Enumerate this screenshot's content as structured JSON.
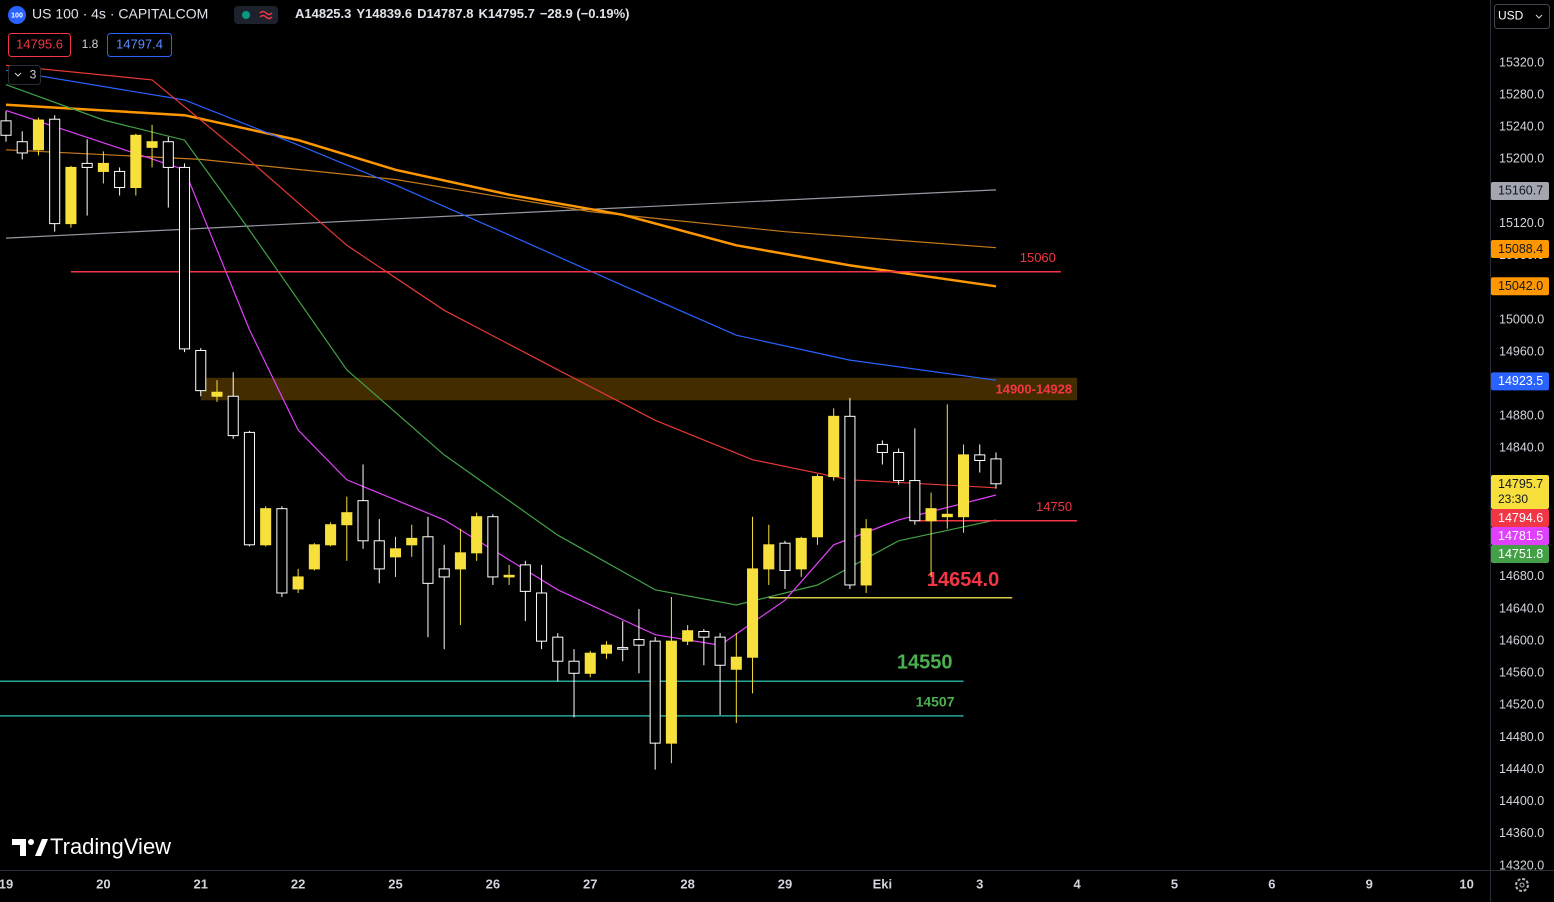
{
  "header": {
    "icon": "100",
    "symbol": "US 100 · 4s · CAPITALCOM",
    "readout": [
      "A14825.3",
      "Y14839.6",
      "D14787.8",
      "K14795.7",
      "−28.9 (−0.19%)"
    ],
    "sell": "14795.6",
    "spread": "1.8",
    "buy": "14797.4",
    "indicators_count": "3",
    "currency": "USD",
    "logo": "TradingView"
  },
  "chart_data": {
    "type": "candlestick",
    "open": [
      15248,
      15222,
      15212,
      15250,
      15120,
      15195,
      15185,
      15185,
      15165,
      15215,
      15222,
      15190,
      14962,
      14905,
      14905,
      14860,
      14720,
      14765,
      14665,
      14690,
      14720,
      14745,
      14775,
      14725,
      14705,
      14720,
      14730,
      14690,
      14690,
      14710,
      14755,
      14680,
      14695,
      14660,
      14605,
      14575,
      14560,
      14585,
      14592,
      14602,
      14600,
      14473,
      14600,
      14612,
      14605,
      14565,
      14580,
      14690,
      14722,
      14690,
      14730,
      14805,
      14880,
      14670,
      14845,
      14835,
      14800,
      14750,
      14755,
      14755,
      14832,
      14827
    ],
    "high": [
      15260,
      15235,
      15252,
      15255,
      15192,
      15225,
      15210,
      15190,
      15232,
      15243,
      15228,
      15195,
      14965,
      14925,
      14935,
      14862,
      14768,
      14768,
      14690,
      14722,
      14748,
      14780,
      14820,
      14752,
      14730,
      14745,
      14755,
      14720,
      14740,
      14760,
      14758,
      14695,
      14700,
      14695,
      14610,
      14590,
      14588,
      14600,
      14625,
      14640,
      14605,
      14655,
      14620,
      14615,
      14610,
      14610,
      14755,
      14745,
      14725,
      14730,
      14808,
      14890,
      14903,
      14752,
      14850,
      14840,
      14865,
      14785,
      14895,
      14845,
      14845,
      14835
    ],
    "low": [
      15222,
      15200,
      15205,
      15110,
      15115,
      15130,
      15170,
      15155,
      15155,
      15190,
      15140,
      14960,
      14905,
      14898,
      14852,
      14718,
      14718,
      14655,
      14660,
      14688,
      14718,
      14700,
      14715,
      14672,
      14680,
      14705,
      14605,
      14590,
      14620,
      14700,
      14670,
      14670,
      14625,
      14590,
      14550,
      14505,
      14555,
      14578,
      14575,
      14560,
      14440,
      14448,
      14595,
      14570,
      14508,
      14498,
      14535,
      14670,
      14665,
      14680,
      14720,
      14800,
      14665,
      14660,
      14820,
      14795,
      14745,
      14680,
      14740,
      14735,
      14810,
      14790
    ],
    "close": [
      15230,
      15208,
      15249,
      15120,
      15190,
      15190,
      15195,
      15165,
      15230,
      15222,
      15190,
      14964,
      14912,
      14910,
      14856,
      14720,
      14765,
      14660,
      14680,
      14720,
      14745,
      14760,
      14725,
      14690,
      14715,
      14728,
      14672,
      14680,
      14710,
      14755,
      14680,
      14682,
      14662,
      14600,
      14575,
      14560,
      14585,
      14595,
      14590,
      14595,
      14473,
      14600,
      14613,
      14605,
      14570,
      14580,
      14690,
      14720,
      14688,
      14728,
      14805,
      14880,
      14670,
      14740,
      14835,
      14800,
      14750,
      14765,
      14758,
      14832,
      14825,
      14796
    ],
    "up_color": "#f7e03c",
    "down_color": "#ffffff",
    "lines": [
      {
        "color": "#9598a1",
        "x": [
          0,
          30,
          61
        ],
        "values": [
          15102,
          15132,
          15162
        ]
      },
      {
        "color": "#c77a1b",
        "x": [
          0,
          12,
          24,
          36,
          48,
          61
        ],
        "values": [
          15212,
          15200,
          15175,
          15135,
          15110,
          15090
        ]
      },
      {
        "color": "#ff9800",
        "x": [
          0,
          11,
          18,
          24,
          31,
          38,
          45,
          52,
          61
        ],
        "values": [
          15268,
          15255,
          15224,
          15187,
          15156,
          15131,
          15093,
          15068,
          15042
        ]
      },
      {
        "color": "#2962ff",
        "x": [
          0,
          11,
          18,
          24,
          31,
          38,
          45,
          52,
          61
        ],
        "values": [
          15311,
          15274,
          15218,
          15168,
          15106,
          15043,
          14981,
          14950,
          14925
        ]
      },
      {
        "color": "#e53935",
        "x": [
          0,
          9,
          15,
          21,
          27,
          34,
          40,
          46,
          52,
          61
        ],
        "values": [
          15317,
          15299,
          15199,
          15093,
          15012,
          14938,
          14875,
          14826,
          14801,
          14791
        ]
      },
      {
        "color": "#43a047",
        "x": [
          0,
          6,
          11,
          15,
          21,
          27,
          34,
          40,
          45,
          50,
          55,
          61
        ],
        "values": [
          15293,
          15249,
          15224,
          15112,
          14938,
          14832,
          14732,
          14664,
          14645,
          14670,
          14725,
          14751
        ]
      },
      {
        "color": "#e040fb",
        "x": [
          0,
          11,
          15,
          18,
          21,
          27,
          34,
          40,
          44,
          48,
          51,
          55,
          61
        ],
        "values": [
          15261,
          15187,
          14988,
          14863,
          14801,
          14751,
          14664,
          14608,
          14595,
          14651,
          14720,
          14751,
          14782
        ]
      }
    ],
    "zone": {
      "low": 14900,
      "high": 14928,
      "label": "14900-14928",
      "x": [
        12,
        66
      ],
      "color": "#4a3200",
      "text_color": "#f23645"
    },
    "levels": [
      {
        "value": 15060,
        "label": "15060",
        "x": [
          4,
          65
        ],
        "color": "#f23645",
        "text_color": "#f23645"
      },
      {
        "value": 14750,
        "label": "14750",
        "x": [
          56,
          66
        ],
        "color": "#f23645",
        "text_color": "#f23645"
      },
      {
        "value": 14654,
        "label": "14654.0",
        "x": [
          47,
          62
        ],
        "color": "#d8c94a",
        "text_color": "#f23645"
      },
      {
        "value": 14550,
        "label": "14550",
        "x": [
          -1,
          59
        ],
        "color": "#26a69a",
        "text_color": "#4caf50"
      },
      {
        "value": 14507,
        "label": "14507",
        "x": [
          -1,
          59
        ],
        "color": "#26a69a",
        "text_color": "#4caf50"
      }
    ],
    "price_tags": [
      {
        "value": 15160.7,
        "label": "15160.7",
        "color": "#a3a6af",
        "text_color": "#131722"
      },
      {
        "value": 15088.4,
        "label": "15088.4",
        "color": "#ff9800",
        "text_color": "#131722"
      },
      {
        "value": 15042,
        "label": "15042.0",
        "color": "#ff9800",
        "text_color": "#131722"
      },
      {
        "value": 14923.5,
        "label": "14923.5",
        "color": "#2962ff",
        "text_color": "#ffffff"
      },
      {
        "value": 14795.7,
        "label": "14795.7",
        "sub": "23:30",
        "color": "#f7e03c",
        "text_color": "#131722"
      },
      {
        "value": 14794.6,
        "label": "14794.6",
        "color": "#f23645",
        "text_color": "#ffffff"
      },
      {
        "value": 14781.5,
        "label": "14781.5",
        "color": "#e040fb",
        "text_color": "#ffffff"
      },
      {
        "value": 14751.8,
        "label": "14751.8",
        "color": "#43a047",
        "text_color": "#ffffff"
      }
    ],
    "xlim": [
      -0.37,
      91.44
    ],
    "xticks": [
      {
        "value": 0,
        "label": "19"
      },
      {
        "value": 6,
        "label": "20"
      },
      {
        "value": 12,
        "label": "21"
      },
      {
        "value": 18,
        "label": "22"
      },
      {
        "value": 24,
        "label": "25"
      },
      {
        "value": 30,
        "label": "26"
      },
      {
        "value": 36,
        "label": "27"
      },
      {
        "value": 42,
        "label": "28"
      },
      {
        "value": 48,
        "label": "29"
      },
      {
        "value": 54,
        "label": "Eki"
      },
      {
        "value": 60,
        "label": "3"
      },
      {
        "value": 66,
        "label": "4"
      },
      {
        "value": 72,
        "label": "5"
      },
      {
        "value": 78,
        "label": "6"
      },
      {
        "value": 84,
        "label": "9"
      },
      {
        "value": 90,
        "label": "10"
      }
    ],
    "ylim": [
      14315,
      15398.5
    ],
    "yticks": [
      {
        "value": 14320,
        "label": "14320.0"
      },
      {
        "value": 14360,
        "label": "14360.0"
      },
      {
        "value": 14400,
        "label": "14400.0"
      },
      {
        "value": 14440,
        "label": "14440.0"
      },
      {
        "value": 14480,
        "label": "14480.0"
      },
      {
        "value": 14520,
        "label": "14520.0"
      },
      {
        "value": 14560,
        "label": "14560.0"
      },
      {
        "value": 14600,
        "label": "14600.0"
      },
      {
        "value": 14640,
        "label": "14640.0"
      },
      {
        "value": 14680,
        "label": "14680.0"
      },
      {
        "value": 14720,
        "label": "14720.0"
      },
      {
        "value": 14760,
        "label": "14760.0"
      },
      {
        "value": 14800,
        "label": "14800.0"
      },
      {
        "value": 14840,
        "label": "14840.0"
      },
      {
        "value": 14880,
        "label": "14880.0"
      },
      {
        "value": 14920,
        "label": "14920.0"
      },
      {
        "value": 14960,
        "label": "14960.0"
      },
      {
        "value": 15000,
        "label": "15000.0"
      },
      {
        "value": 15040,
        "label": "15040.0"
      },
      {
        "value": 15080,
        "label": "15080.0"
      },
      {
        "value": 15120,
        "label": "15120.0"
      },
      {
        "value": 15160,
        "label": "15160.0"
      },
      {
        "value": 15200,
        "label": "15200.0"
      },
      {
        "value": 15240,
        "label": "15240.0"
      },
      {
        "value": 15280,
        "label": "15280.0"
      },
      {
        "value": 15320,
        "label": "15320.0"
      }
    ],
    "grid": false
  }
}
